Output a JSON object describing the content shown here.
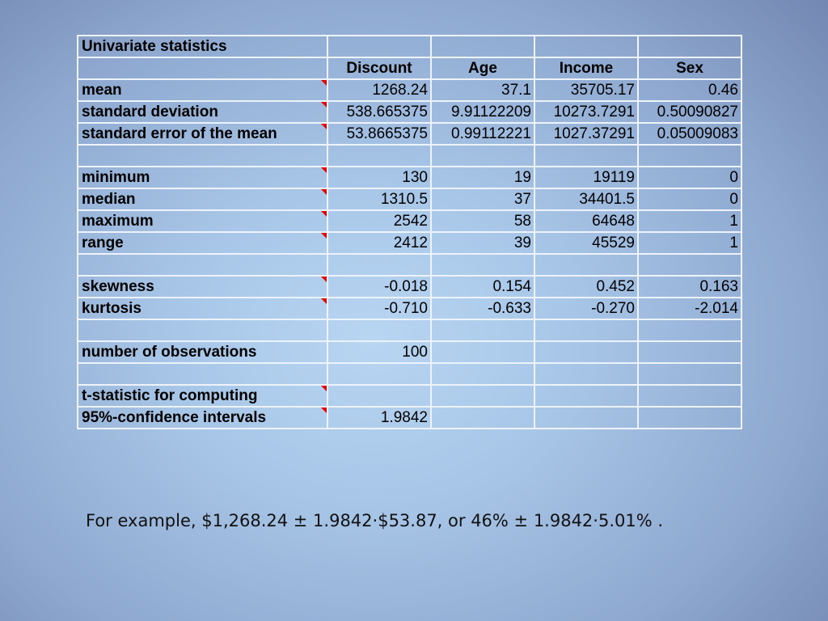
{
  "table": {
    "title": "Univariate statistics",
    "columns": [
      "Discount",
      "Age",
      "Income",
      "Sex"
    ],
    "rows": [
      {
        "label": "mean",
        "values": [
          "1268.24",
          "37.1",
          "35705.17",
          "0.46"
        ]
      },
      {
        "label": "standard deviation",
        "values": [
          "538.665375",
          "9.91122209",
          "10273.7291",
          "0.50090827"
        ]
      },
      {
        "label": "standard error of the mean",
        "values": [
          "53.8665375",
          "0.99112221",
          "1027.37291",
          "0.05009083"
        ]
      },
      {
        "label": "minimum",
        "values": [
          "130",
          "19",
          "19119",
          "0"
        ]
      },
      {
        "label": "median",
        "values": [
          "1310.5",
          "37",
          "34401.5",
          "0"
        ]
      },
      {
        "label": "maximum",
        "values": [
          "2542",
          "58",
          "64648",
          "1"
        ]
      },
      {
        "label": "range",
        "values": [
          "2412",
          "39",
          "45529",
          "1"
        ]
      },
      {
        "label": "skewness",
        "values": [
          "-0.018",
          "0.154",
          "0.452",
          "0.163"
        ]
      },
      {
        "label": "kurtosis",
        "values": [
          "-0.710",
          "-0.633",
          "-0.270",
          "-2.014"
        ]
      },
      {
        "label": "number of observations",
        "values": [
          "100"
        ]
      },
      {
        "label": "t-statistic for computing",
        "values": []
      },
      {
        "label": "95%-confidence intervals",
        "values": [
          "1.9842"
        ]
      }
    ],
    "comment_indicator_color": "#e00000"
  },
  "caption": "For example, $1,268.24 ± 1.9842·$53.87, or 46% ± 1.9842·5.01% ."
}
